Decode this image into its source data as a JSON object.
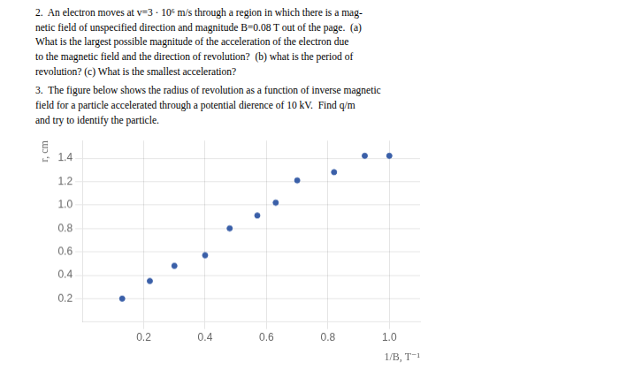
{
  "chart_data": {
    "type": "scatter",
    "annotations": [
      "2.  An electron moves at v=3 · 10⁶ m/s through a region in which there is a mag-\nnetic field of unspecified direction and magnitude B=0.08 T out of the page.  (a)\nWhat is the largest possible magnitude of the acceleration of the electron due\nto the magnetic field and the direction of revolution?  (b) what is the period of\nrevolution? (c) What is the smallest acceleration?",
      "3.  The figure below shows the radius of revolution as a function of inverse magnetic\nfield for a particle accelerated through a potential dierence of 10 kV.  Find q/m\nand try to identify the particle."
    ],
    "x": [
      0.13,
      0.22,
      0.3,
      0.4,
      0.48,
      0.57,
      0.63,
      0.7,
      0.82,
      0.92,
      1.0
    ],
    "values": [
      0.2,
      0.35,
      0.48,
      0.57,
      0.8,
      0.91,
      1.02,
      1.21,
      1.28,
      1.42,
      1.42
    ],
    "color": "#3a5fa8",
    "xlabel": "1/B, T⁻¹",
    "ylabel": "r, cm",
    "xlim": [
      0.0,
      1.1
    ],
    "ylim": [
      0.0,
      1.55
    ],
    "xticks": [
      0.2,
      0.4,
      0.6,
      {
        "value": 1,
        "label": "1.0"
      },
      0.8
    ],
    "yticks": [
      0.2,
      0.4,
      0.6,
      0.8,
      {
        "value": 1,
        "label": "1.0"
      },
      1.2,
      1.4
    ],
    "grid": true
  }
}
